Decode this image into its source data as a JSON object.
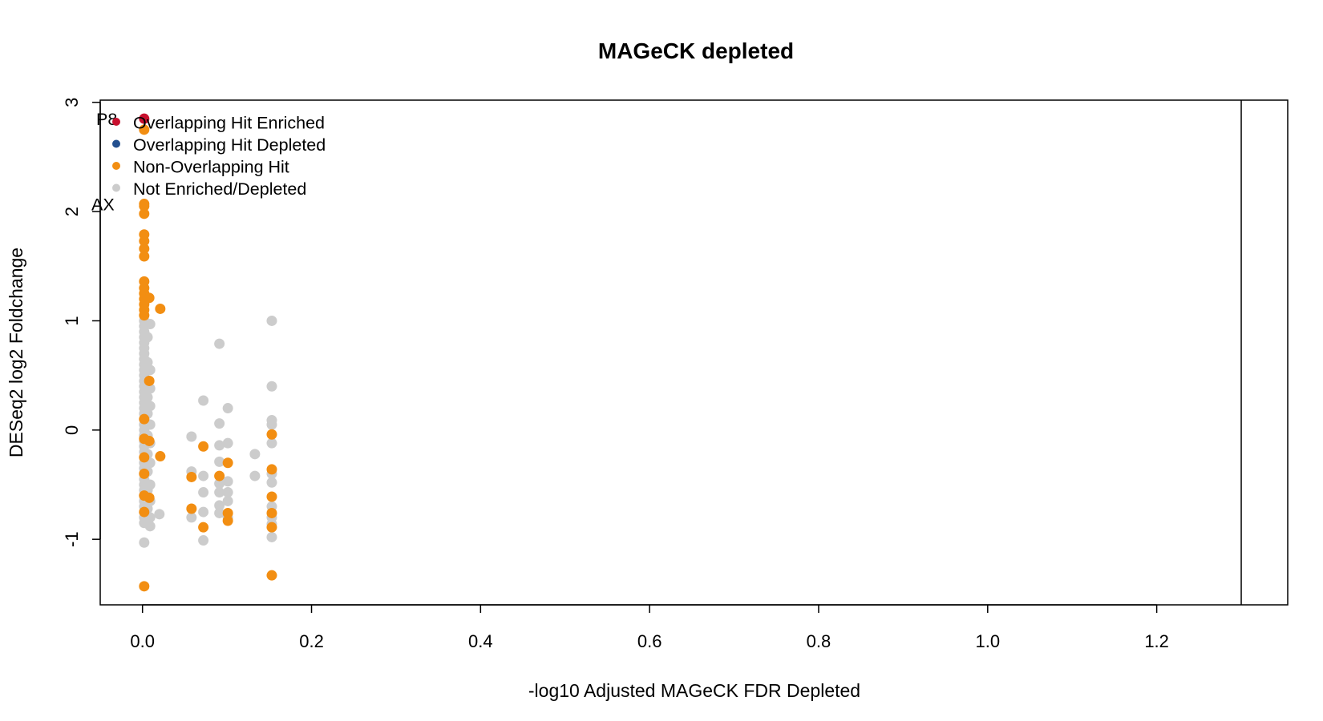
{
  "chart_data": {
    "type": "scatter",
    "title": "MAGeCK depleted",
    "xlabel": "-log10 Adjusted MAGeCK FDR Depleted",
    "ylabel": "DESeq2 log2 Foldchange",
    "xlim": [
      -0.05,
      1.355
    ],
    "ylim": [
      -1.6,
      3.02
    ],
    "xticks": [
      0.0,
      0.2,
      0.4,
      0.6,
      0.8,
      1.0,
      1.2
    ],
    "xtick_labels": [
      "0.0",
      "0.2",
      "0.4",
      "0.6",
      "0.8",
      "1.0",
      "1.2"
    ],
    "yticks": [
      -1,
      0,
      1,
      2,
      3
    ],
    "ytick_labels": [
      "-1",
      "0",
      "1",
      "2",
      "3"
    ],
    "vline_x": 1.3,
    "grid": false,
    "legend_position": "top-left",
    "legend": [
      {
        "label": "Overlapping Hit Enriched",
        "color": "#C8102E"
      },
      {
        "label": "Overlapping Hit Depleted",
        "color": "#23508F"
      },
      {
        "label": "Non-Overlapping Hit",
        "color": "#F28E12"
      },
      {
        "label": "Not Enriched/Depleted",
        "color": "#CCCCCC"
      }
    ],
    "annotations": [
      {
        "text": "P8",
        "x": 0.002,
        "y": 2.85
      },
      {
        "text": "AX",
        "x": 0.002,
        "y": 2.07
      }
    ],
    "series": [
      {
        "name": "Not Enriched/Depleted",
        "color": "#CCCCCC",
        "points": [
          [
            0.002,
            1.0
          ],
          [
            0.002,
            0.95
          ],
          [
            0.002,
            0.9
          ],
          [
            0.002,
            0.85
          ],
          [
            0.002,
            0.8
          ],
          [
            0.002,
            0.75
          ],
          [
            0.002,
            0.7
          ],
          [
            0.002,
            0.65
          ],
          [
            0.002,
            0.6
          ],
          [
            0.002,
            0.55
          ],
          [
            0.002,
            0.5
          ],
          [
            0.002,
            0.45
          ],
          [
            0.002,
            0.4
          ],
          [
            0.002,
            0.35
          ],
          [
            0.002,
            0.3
          ],
          [
            0.002,
            0.25
          ],
          [
            0.002,
            0.2
          ],
          [
            0.002,
            0.15
          ],
          [
            0.002,
            0.1
          ],
          [
            0.002,
            0.05
          ],
          [
            0.002,
            0.0
          ],
          [
            0.002,
            -0.05
          ],
          [
            0.002,
            -0.1
          ],
          [
            0.002,
            -0.15
          ],
          [
            0.002,
            -0.2
          ],
          [
            0.002,
            -0.25
          ],
          [
            0.002,
            -0.3
          ],
          [
            0.002,
            -0.35
          ],
          [
            0.002,
            -0.4
          ],
          [
            0.002,
            -0.45
          ],
          [
            0.002,
            -0.5
          ],
          [
            0.002,
            -0.55
          ],
          [
            0.002,
            -0.6
          ],
          [
            0.002,
            -0.65
          ],
          [
            0.002,
            -0.7
          ],
          [
            0.002,
            -0.75
          ],
          [
            0.002,
            -0.8
          ],
          [
            0.002,
            -0.85
          ],
          [
            0.002,
            -1.03
          ],
          [
            0.006,
            0.85
          ],
          [
            0.006,
            0.62
          ],
          [
            0.006,
            0.45
          ],
          [
            0.006,
            0.3
          ],
          [
            0.006,
            0.15
          ],
          [
            0.006,
            -0.05
          ],
          [
            0.006,
            -0.22
          ],
          [
            0.006,
            -0.38
          ],
          [
            0.006,
            -0.55
          ],
          [
            0.006,
            -0.72
          ],
          [
            0.006,
            -0.85
          ],
          [
            0.009,
            0.97
          ],
          [
            0.009,
            0.55
          ],
          [
            0.009,
            0.38
          ],
          [
            0.009,
            0.22
          ],
          [
            0.009,
            0.05
          ],
          [
            0.009,
            -0.12
          ],
          [
            0.009,
            -0.3
          ],
          [
            0.009,
            -0.5
          ],
          [
            0.009,
            -0.65
          ],
          [
            0.009,
            -0.8
          ],
          [
            0.009,
            -0.88
          ],
          [
            0.02,
            -0.77
          ],
          [
            0.058,
            -0.06
          ],
          [
            0.058,
            -0.38
          ],
          [
            0.058,
            -0.8
          ],
          [
            0.072,
            0.27
          ],
          [
            0.072,
            -0.42
          ],
          [
            0.072,
            -0.57
          ],
          [
            0.072,
            -0.75
          ],
          [
            0.072,
            -1.01
          ],
          [
            0.091,
            0.79
          ],
          [
            0.091,
            0.06
          ],
          [
            0.091,
            -0.14
          ],
          [
            0.091,
            -0.29
          ],
          [
            0.091,
            -0.49
          ],
          [
            0.091,
            -0.57
          ],
          [
            0.091,
            -0.69
          ],
          [
            0.091,
            -0.76
          ],
          [
            0.101,
            0.2
          ],
          [
            0.101,
            -0.12
          ],
          [
            0.101,
            -0.47
          ],
          [
            0.101,
            -0.57
          ],
          [
            0.101,
            -0.65
          ],
          [
            0.101,
            -0.8
          ],
          [
            0.133,
            -0.22
          ],
          [
            0.133,
            -0.42
          ],
          [
            0.153,
            1.0
          ],
          [
            0.153,
            0.4
          ],
          [
            0.153,
            0.09
          ],
          [
            0.153,
            0.05
          ],
          [
            0.153,
            -0.12
          ],
          [
            0.153,
            -0.4
          ],
          [
            0.153,
            -0.48
          ],
          [
            0.153,
            -0.7
          ],
          [
            0.153,
            -0.8
          ],
          [
            0.153,
            -0.86
          ],
          [
            0.153,
            -0.98
          ]
        ]
      },
      {
        "name": "Non-Overlapping Hit",
        "color": "#F28E12",
        "points": [
          [
            0.002,
            2.75
          ],
          [
            0.002,
            2.07
          ],
          [
            0.002,
            2.05
          ],
          [
            0.002,
            1.98
          ],
          [
            0.002,
            1.79
          ],
          [
            0.002,
            1.73
          ],
          [
            0.002,
            1.66
          ],
          [
            0.002,
            1.59
          ],
          [
            0.002,
            1.36
          ],
          [
            0.002,
            1.3
          ],
          [
            0.002,
            1.25
          ],
          [
            0.002,
            1.2
          ],
          [
            0.002,
            1.15
          ],
          [
            0.002,
            1.1
          ],
          [
            0.002,
            1.05
          ],
          [
            0.002,
            0.1
          ],
          [
            0.002,
            -0.08
          ],
          [
            0.002,
            -0.25
          ],
          [
            0.002,
            -0.4
          ],
          [
            0.002,
            -0.6
          ],
          [
            0.002,
            -0.75
          ],
          [
            0.002,
            -1.43
          ],
          [
            0.008,
            1.21
          ],
          [
            0.008,
            0.45
          ],
          [
            0.008,
            -0.1
          ],
          [
            0.008,
            -0.62
          ],
          [
            0.021,
            1.11
          ],
          [
            0.021,
            -0.24
          ],
          [
            0.058,
            -0.43
          ],
          [
            0.058,
            -0.72
          ],
          [
            0.072,
            -0.15
          ],
          [
            0.072,
            -0.89
          ],
          [
            0.091,
            -0.42
          ],
          [
            0.101,
            -0.3
          ],
          [
            0.101,
            -0.76
          ],
          [
            0.101,
            -0.83
          ],
          [
            0.153,
            -0.04
          ],
          [
            0.153,
            -0.36
          ],
          [
            0.153,
            -0.61
          ],
          [
            0.153,
            -0.76
          ],
          [
            0.153,
            -0.89
          ],
          [
            0.153,
            -1.33
          ]
        ]
      },
      {
        "name": "Overlapping Hit Depleted",
        "color": "#23508F",
        "points": []
      },
      {
        "name": "Overlapping Hit Enriched",
        "color": "#C8102E",
        "points": [
          [
            0.002,
            2.85
          ]
        ]
      }
    ]
  }
}
